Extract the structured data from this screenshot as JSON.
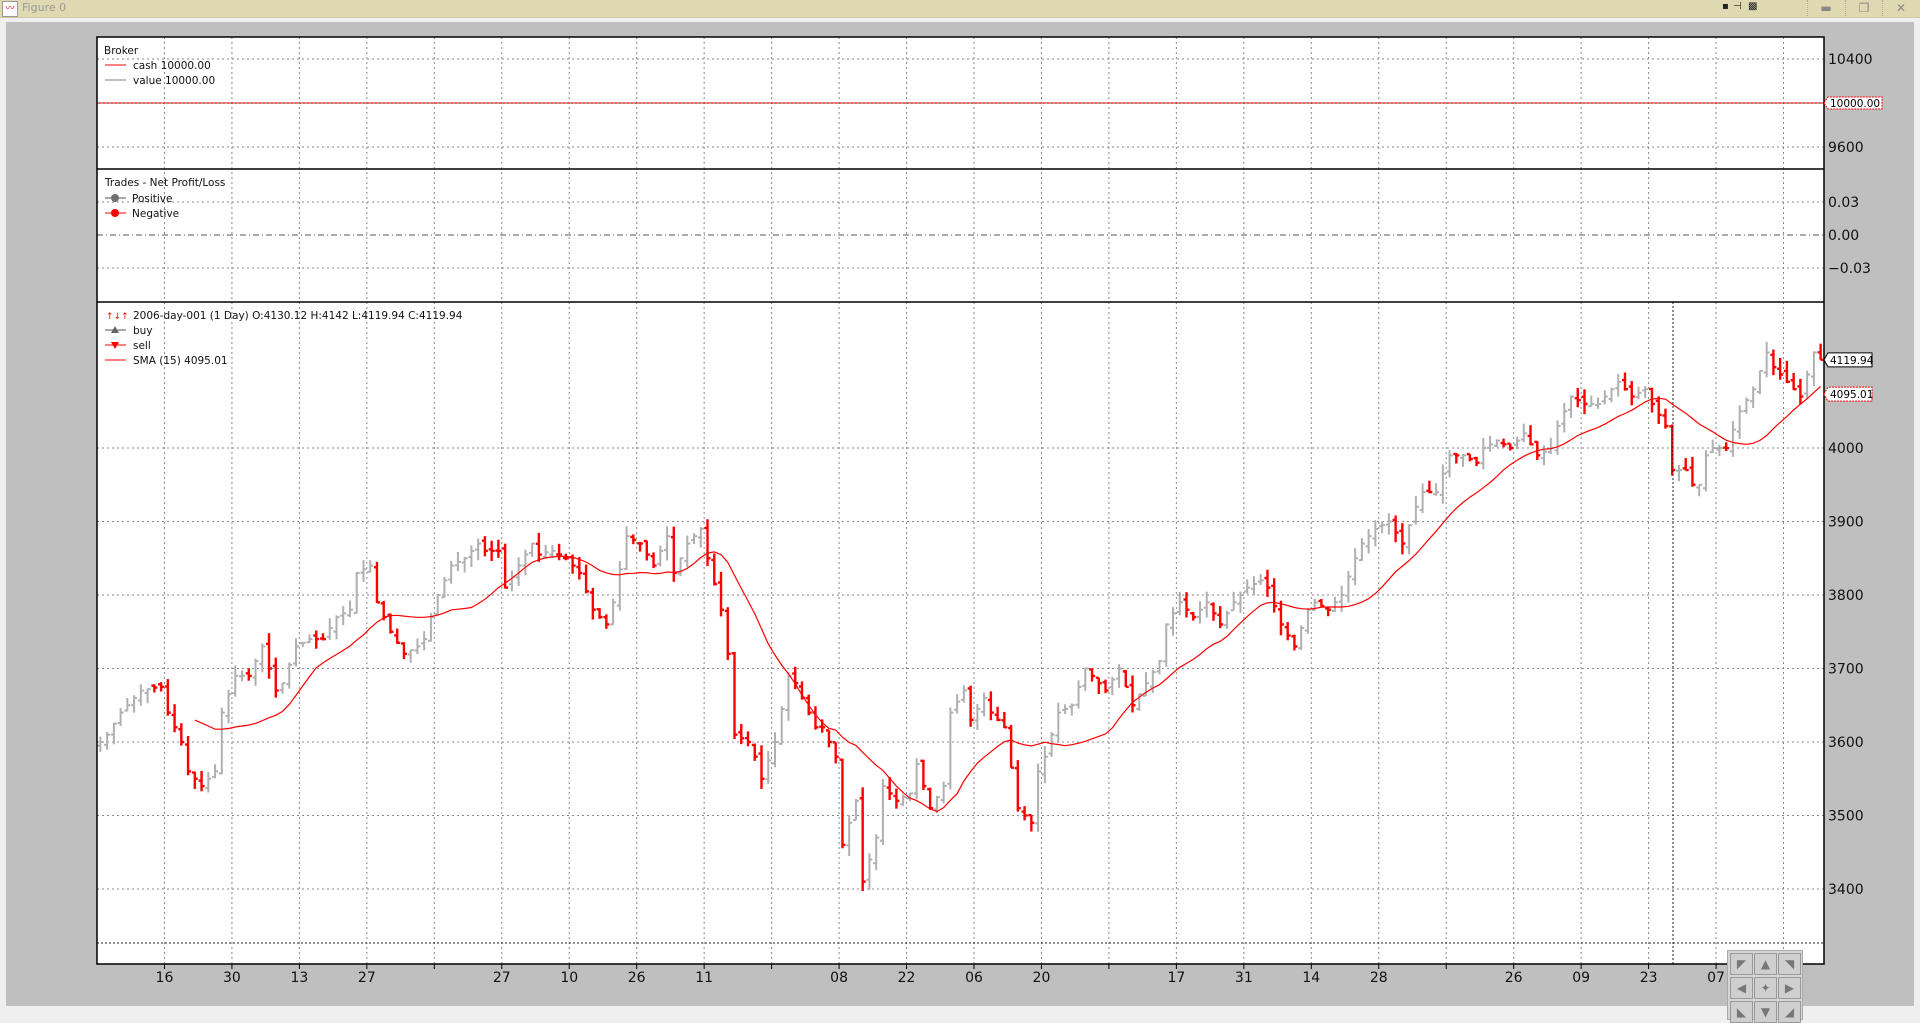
{
  "window": {
    "title": "Figure 0",
    "controls": [
      "minimize-icon",
      "restore-icon",
      "close-icon"
    ]
  },
  "broker": {
    "title": "Broker",
    "legend": [
      "cash 10000.00",
      "value 10000.00"
    ],
    "yticks": [
      "10400",
      "9600"
    ],
    "tag": "10000.00",
    "value": 10000,
    "ylim": [
      9500,
      10500
    ],
    "colors": {
      "cash": "#ff0000",
      "value": "#808080"
    }
  },
  "trades": {
    "title": "Trades - Net Profit/Loss",
    "legend": [
      "Positive",
      "Negative"
    ],
    "yticks": [
      "0.03",
      "0.00",
      "−0.03"
    ]
  },
  "price": {
    "legend": [
      "2006-day-001 (1 Day) O:4130.12 H:4142 L:4119.94 C:4119.94",
      "buy",
      "sell",
      "SMA (15) 4095.01"
    ],
    "yticks": [
      "4000",
      "3900",
      "3800",
      "3700",
      "3600",
      "3500",
      "3400"
    ],
    "close_tag": "4119.94",
    "sma_tag": "4095.01"
  },
  "xticks": [
    "16",
    "30",
    "13",
    "27",
    "",
    "27",
    "10",
    "26",
    "11",
    "",
    "08",
    "22",
    "06",
    "20",
    "",
    "17",
    "31",
    "14",
    "28",
    "",
    "26",
    "09",
    "23",
    "07",
    ""
  ],
  "chart_data": {
    "type": "ohlc",
    "sma_period": 15,
    "up_color": "#b0b0b0",
    "down_color": "#ff0000",
    "ylim": [
      3330,
      4180
    ],
    "last": {
      "open": 4130.12,
      "high": 4142,
      "low": 4119.94,
      "close": 4119.94,
      "sma": 4095.01
    },
    "close": [
      3600,
      3610,
      3625,
      3640,
      3650,
      3660,
      3670,
      3672,
      3674,
      3675,
      3640,
      3620,
      3600,
      3560,
      3550,
      3540,
      3550,
      3560,
      3640,
      3665,
      3690,
      3690,
      3690,
      3710,
      3730,
      3700,
      3670,
      3680,
      3705,
      3730,
      3735,
      3740,
      3740,
      3740,
      3755,
      3770,
      3775,
      3780,
      3830,
      3835,
      3840,
      3790,
      3770,
      3750,
      3735,
      3720,
      3725,
      3730,
      3740,
      3770,
      3800,
      3820,
      3840,
      3845,
      3850,
      3860,
      3870,
      3860,
      3860,
      3860,
      3810,
      3825,
      3840,
      3855,
      3870,
      3855,
      3858,
      3860,
      3855,
      3850,
      3840,
      3830,
      3805,
      3780,
      3770,
      3760,
      3790,
      3835,
      3880,
      3875,
      3870,
      3855,
      3840,
      3860,
      3880,
      3830,
      3850,
      3870,
      3880,
      3890,
      3850,
      3815,
      3780,
      3720,
      3610,
      3605,
      3600,
      3580,
      3550,
      3575,
      3600,
      3645,
      3690,
      3680,
      3660,
      3640,
      3620,
      3620,
      3600,
      3580,
      3460,
      3490,
      3520,
      3410,
      3440,
      3470,
      3540,
      3530,
      3520,
      3525,
      3530,
      3570,
      3540,
      3510,
      3525,
      3540,
      3640,
      3655,
      3670,
      3630,
      3645,
      3660,
      3640,
      3630,
      3620,
      3565,
      3510,
      3500,
      3490,
      3560,
      3580,
      3610,
      3640,
      3645,
      3650,
      3675,
      3700,
      3690,
      3680,
      3670,
      3685,
      3700,
      3675,
      3650,
      3665,
      3680,
      3695,
      3710,
      3760,
      3775,
      3790,
      3780,
      3770,
      3780,
      3790,
      3775,
      3760,
      3775,
      3790,
      3800,
      3810,
      3815,
      3820,
      3810,
      3785,
      3760,
      3745,
      3730,
      3755,
      3780,
      3790,
      3785,
      3780,
      3790,
      3800,
      3825,
      3850,
      3870,
      3880,
      3890,
      3895,
      3900,
      3885,
      3870,
      3895,
      3920,
      3940,
      3940,
      3940,
      3965,
      3990,
      3990,
      3990,
      3985,
      3980,
      4000,
      4005,
      4010,
      4005,
      4000,
      4010,
      4020,
      4005,
      3990,
      3995,
      4000,
      4030,
      4050,
      4070,
      4065,
      4060,
      4060,
      4060,
      4070,
      4080,
      4090,
      4080,
      4070,
      4075,
      4080,
      4060,
      4045,
      4030,
      3970,
      3970,
      3970,
      3950,
      3950,
      3990,
      4000,
      4000,
      4000,
      4025,
      4050,
      4065,
      4080,
      4105,
      4130,
      4110,
      4100,
      4090,
      4080,
      4070,
      4100,
      4130,
      4119.94
    ]
  }
}
